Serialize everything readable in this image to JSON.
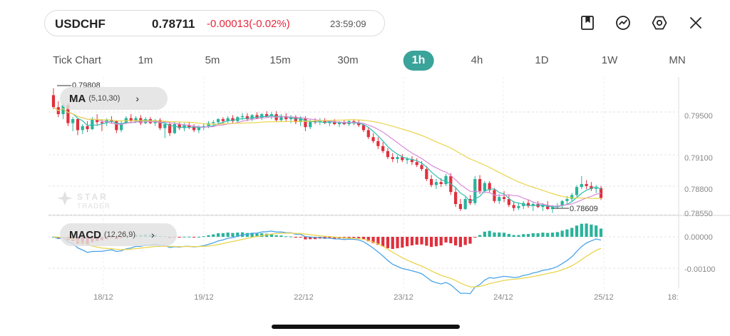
{
  "quote": {
    "symbol": "USDCHF",
    "price": "0.78711",
    "change": "-0.00013(-0.02%)",
    "time": "23:59:09"
  },
  "toolbar_icons": [
    "bookmark-icon",
    "trend-icon",
    "settings-icon",
    "close-icon"
  ],
  "timeframes": [
    "Tick Chart",
    "1m",
    "5m",
    "15m",
    "30m",
    "1h",
    "4h",
    "1D",
    "1W",
    "MN"
  ],
  "active_timeframe": "1h",
  "watermark": {
    "line1": "STAR",
    "line2": "TRADER"
  },
  "indicators": {
    "ma": {
      "name": "MA",
      "params": "(5,10,30)"
    },
    "macd": {
      "name": "MACD",
      "params": "(12,26,9)"
    }
  },
  "chart_data": {
    "type": "candlestick",
    "x_labels": [
      "18/12",
      "19/12",
      "22/12",
      "23/12",
      "24/12",
      "25/12",
      "18:"
    ],
    "price_ticks": [
      "0.79500",
      "0.79100",
      "0.78800",
      "0.78550"
    ],
    "macd_ticks": [
      "0.00000",
      "-0.00100"
    ],
    "high_marker": "0.79808",
    "low_marker": "0.78609",
    "ohlc": [
      [
        0.7974,
        0.7981,
        0.796,
        0.7962
      ],
      [
        0.7962,
        0.7968,
        0.7952,
        0.7955
      ],
      [
        0.7955,
        0.7966,
        0.795,
        0.7964
      ],
      [
        0.7964,
        0.7966,
        0.7943,
        0.7946
      ],
      [
        0.7946,
        0.7952,
        0.7938,
        0.795
      ],
      [
        0.795,
        0.7951,
        0.7934,
        0.7939
      ],
      [
        0.7939,
        0.7945,
        0.7935,
        0.7943
      ],
      [
        0.7943,
        0.7948,
        0.7937,
        0.794
      ],
      [
        0.794,
        0.7952,
        0.7939,
        0.795
      ],
      [
        0.795,
        0.7955,
        0.7944,
        0.7947
      ],
      [
        0.7947,
        0.795,
        0.7938,
        0.7946
      ],
      [
        0.7946,
        0.7951,
        0.7943,
        0.7949
      ],
      [
        0.7949,
        0.7953,
        0.7946,
        0.7948
      ],
      [
        0.7948,
        0.7949,
        0.7936,
        0.7939
      ],
      [
        0.7939,
        0.7949,
        0.7937,
        0.7946
      ],
      [
        0.7946,
        0.7953,
        0.7945,
        0.7951
      ],
      [
        0.7951,
        0.7955,
        0.7946,
        0.7948
      ],
      [
        0.7948,
        0.7953,
        0.7946,
        0.7951
      ],
      [
        0.7951,
        0.7954,
        0.7944,
        0.7946
      ],
      [
        0.7946,
        0.7952,
        0.7945,
        0.795
      ],
      [
        0.795,
        0.7952,
        0.7945,
        0.7946
      ],
      [
        0.7946,
        0.795,
        0.7943,
        0.7949
      ],
      [
        0.7949,
        0.7951,
        0.7939,
        0.7941
      ],
      [
        0.7941,
        0.7948,
        0.7931,
        0.7945
      ],
      [
        0.7945,
        0.7947,
        0.7933,
        0.7936
      ],
      [
        0.7936,
        0.7948,
        0.7935,
        0.7945
      ],
      [
        0.7945,
        0.7947,
        0.7939,
        0.7941
      ],
      [
        0.7941,
        0.7946,
        0.7938,
        0.7944
      ],
      [
        0.7944,
        0.7947,
        0.794,
        0.7942
      ],
      [
        0.7942,
        0.7945,
        0.7937,
        0.7939
      ],
      [
        0.7939,
        0.7944,
        0.7936,
        0.7942
      ],
      [
        0.7942,
        0.7946,
        0.7939,
        0.7943
      ],
      [
        0.7943,
        0.7948,
        0.7941,
        0.7946
      ],
      [
        0.7946,
        0.7949,
        0.7943,
        0.7947
      ],
      [
        0.7947,
        0.7951,
        0.7944,
        0.795
      ],
      [
        0.795,
        0.7952,
        0.7945,
        0.7948
      ],
      [
        0.7948,
        0.7953,
        0.7946,
        0.7951
      ],
      [
        0.7951,
        0.7954,
        0.7946,
        0.7948
      ],
      [
        0.7948,
        0.7953,
        0.7946,
        0.7952
      ],
      [
        0.7952,
        0.7956,
        0.7949,
        0.7953
      ],
      [
        0.7953,
        0.7956,
        0.7948,
        0.795
      ],
      [
        0.795,
        0.7955,
        0.7948,
        0.7954
      ],
      [
        0.7954,
        0.7957,
        0.795,
        0.7951
      ],
      [
        0.7951,
        0.7956,
        0.7949,
        0.7955
      ],
      [
        0.7955,
        0.7958,
        0.7952,
        0.7953
      ],
      [
        0.7953,
        0.7957,
        0.795,
        0.7955
      ],
      [
        0.7955,
        0.7958,
        0.7947,
        0.7949
      ],
      [
        0.7949,
        0.7955,
        0.7947,
        0.7953
      ],
      [
        0.7953,
        0.7956,
        0.7948,
        0.795
      ],
      [
        0.795,
        0.7954,
        0.7946,
        0.7952
      ],
      [
        0.7952,
        0.7954,
        0.7945,
        0.7947
      ],
      [
        0.7947,
        0.7953,
        0.7943,
        0.7951
      ],
      [
        0.7951,
        0.7953,
        0.7938,
        0.7942
      ],
      [
        0.7942,
        0.795,
        0.794,
        0.7948
      ],
      [
        0.7948,
        0.7951,
        0.7945,
        0.7947
      ],
      [
        0.7947,
        0.7951,
        0.7944,
        0.7949
      ],
      [
        0.7949,
        0.7951,
        0.7945,
        0.7946
      ],
      [
        0.7946,
        0.7949,
        0.7943,
        0.7948
      ],
      [
        0.7948,
        0.795,
        0.7944,
        0.7945
      ],
      [
        0.7945,
        0.7948,
        0.7942,
        0.7947
      ],
      [
        0.7947,
        0.7949,
        0.7944,
        0.7945
      ],
      [
        0.7945,
        0.7949,
        0.7943,
        0.7948
      ],
      [
        0.7948,
        0.795,
        0.7944,
        0.7946
      ],
      [
        0.7946,
        0.7949,
        0.7942,
        0.7944
      ],
      [
        0.7944,
        0.7946,
        0.7937,
        0.7939
      ],
      [
        0.7939,
        0.7942,
        0.793,
        0.7932
      ],
      [
        0.7932,
        0.7936,
        0.7926,
        0.7928
      ],
      [
        0.7928,
        0.7932,
        0.792,
        0.7923
      ],
      [
        0.7923,
        0.7927,
        0.7916,
        0.7918
      ],
      [
        0.7918,
        0.7921,
        0.791,
        0.7912
      ],
      [
        0.7912,
        0.7916,
        0.7907,
        0.791
      ],
      [
        0.791,
        0.7914,
        0.7906,
        0.7912
      ],
      [
        0.7912,
        0.7915,
        0.7907,
        0.7909
      ],
      [
        0.7909,
        0.7912,
        0.7905,
        0.791
      ],
      [
        0.791,
        0.7913,
        0.7904,
        0.7907
      ],
      [
        0.7907,
        0.7911,
        0.7902,
        0.7904
      ],
      [
        0.7904,
        0.7908,
        0.7898,
        0.79
      ],
      [
        0.79,
        0.7903,
        0.7888,
        0.789
      ],
      [
        0.789,
        0.7894,
        0.7882,
        0.7884
      ],
      [
        0.7884,
        0.789,
        0.788,
        0.7887
      ],
      [
        0.7887,
        0.7891,
        0.7882,
        0.7885
      ],
      [
        0.7885,
        0.7895,
        0.7883,
        0.7893
      ],
      [
        0.7893,
        0.7896,
        0.7874,
        0.7877
      ],
      [
        0.7877,
        0.7881,
        0.7862,
        0.7865
      ],
      [
        0.7865,
        0.787,
        0.7858,
        0.786
      ],
      [
        0.786,
        0.7872,
        0.7859,
        0.787
      ],
      [
        0.787,
        0.7874,
        0.7864,
        0.7866
      ],
      [
        0.7866,
        0.7893,
        0.7864,
        0.789
      ],
      [
        0.789,
        0.7894,
        0.7875,
        0.7878
      ],
      [
        0.7878,
        0.7888,
        0.7876,
        0.7886
      ],
      [
        0.7886,
        0.7888,
        0.7876,
        0.7879
      ],
      [
        0.7879,
        0.7881,
        0.7866,
        0.7868
      ],
      [
        0.7868,
        0.7875,
        0.7865,
        0.7872
      ],
      [
        0.7872,
        0.7878,
        0.7867,
        0.787
      ],
      [
        0.787,
        0.7874,
        0.7862,
        0.7864
      ],
      [
        0.7864,
        0.7868,
        0.7858,
        0.7861
      ],
      [
        0.7861,
        0.7866,
        0.7859,
        0.7863
      ],
      [
        0.7863,
        0.7868,
        0.786,
        0.7866
      ],
      [
        0.7866,
        0.7869,
        0.7861,
        0.7863
      ],
      [
        0.7863,
        0.7867,
        0.7858,
        0.7865
      ],
      [
        0.7865,
        0.7868,
        0.7861,
        0.7862
      ],
      [
        0.7862,
        0.7866,
        0.7858,
        0.7864
      ],
      [
        0.7864,
        0.7868,
        0.7859,
        0.786
      ],
      [
        0.786,
        0.7864,
        0.7856,
        0.7862
      ],
      [
        0.7862,
        0.7866,
        0.786,
        0.7863
      ],
      [
        0.7863,
        0.7869,
        0.7861,
        0.7868
      ],
      [
        0.7868,
        0.7873,
        0.7865,
        0.787
      ],
      [
        0.787,
        0.7876,
        0.7867,
        0.7874
      ],
      [
        0.7874,
        0.7884,
        0.7872,
        0.7882
      ],
      [
        0.7882,
        0.7893,
        0.788,
        0.7885
      ],
      [
        0.7885,
        0.7889,
        0.788,
        0.7883
      ],
      [
        0.7883,
        0.7887,
        0.7878,
        0.788
      ],
      [
        0.788,
        0.7884,
        0.7876,
        0.7881
      ],
      [
        0.7881,
        0.7883,
        0.7869,
        0.7871
      ]
    ],
    "ma_series": [
      {
        "name": "MA5",
        "color": "#2fbfb1"
      },
      {
        "name": "MA10",
        "color": "#d98ad8"
      },
      {
        "name": "MA30",
        "color": "#ead44e"
      }
    ],
    "colors": {
      "up": "#2ab39b",
      "down": "#e0303d",
      "macd_line": "#4aa3e8",
      "signal_line": "#ead44e"
    }
  }
}
